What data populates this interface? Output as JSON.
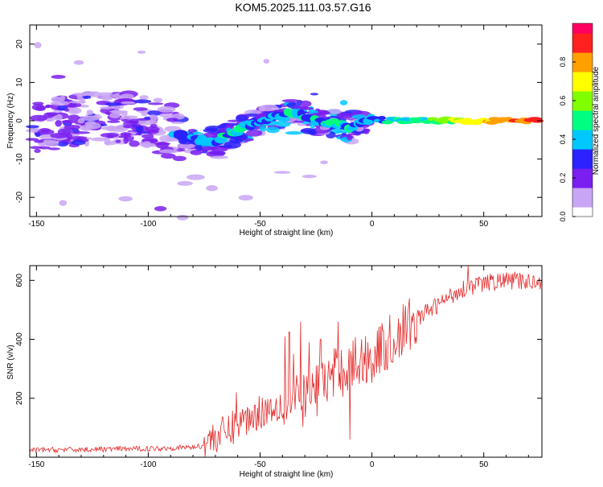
{
  "title": "KOM5.2025.111.03.57.G16",
  "chart_data": [
    {
      "type": "heatmap",
      "xlabel": "Height of straight line (km)",
      "ylabel": "Frequency (Hz)",
      "xlim": [
        -153,
        76
      ],
      "ylim": [
        -25,
        25
      ],
      "x_ticks": [
        -150,
        -100,
        -50,
        0,
        50
      ],
      "y_ticks": [
        -20,
        -10,
        0,
        10,
        20
      ],
      "colorbar": {
        "label": "Normalized spectral amplitude",
        "range": [
          0,
          1
        ],
        "ticks": [
          0.0,
          0.2,
          0.4,
          0.6,
          0.8
        ],
        "colors": [
          "#ffffff",
          "#c9a6f5",
          "#7a1ff0",
          "#2a22ff",
          "#00c8ff",
          "#00ff80",
          "#80ff00",
          "#ffff00",
          "#ffa000",
          "#ff2020",
          "#ff0060"
        ]
      },
      "ridge": {
        "x": [
          -150,
          -120,
          -100,
          -85,
          -78,
          -70,
          -62,
          -55,
          -48,
          -40,
          -33,
          -26,
          -20,
          -13,
          -9,
          -3,
          0,
          10,
          25,
          50,
          75
        ],
        "y": [
          -2,
          1,
          0,
          -4,
          -5,
          -5.5,
          -3,
          -1,
          0,
          1.5,
          2,
          0,
          -0.5,
          -1,
          -2,
          0,
          0.5,
          0,
          0,
          0,
          0
        ]
      }
    },
    {
      "type": "line",
      "xlabel": "Height of straight line (km)",
      "ylabel": "SNR (v/v)",
      "xlim": [
        -153,
        76
      ],
      "ylim": [
        0,
        650
      ],
      "x_ticks": [
        -150,
        -100,
        -50,
        0,
        50
      ],
      "y_ticks": [
        200,
        400,
        600
      ],
      "line_color": "#e32b2b",
      "trend": {
        "x": [
          -153,
          -100,
          -80,
          -75,
          -65,
          -60,
          -50,
          -40,
          -30,
          -20,
          -10,
          0,
          10,
          20,
          30,
          40,
          50,
          60,
          70,
          76
        ],
        "y": [
          15,
          20,
          25,
          30,
          60,
          90,
          130,
          160,
          200,
          260,
          310,
          340,
          400,
          470,
          520,
          570,
          590,
          600,
          595,
          600
        ]
      },
      "spikes": [
        {
          "x": -60.5,
          "y": 220
        },
        {
          "x": -39,
          "y": 410
        },
        {
          "x": -37,
          "y": 425
        },
        {
          "x": -35,
          "y": 350
        },
        {
          "x": -32,
          "y": 460
        },
        {
          "x": -28,
          "y": 390
        },
        {
          "x": -23,
          "y": 400
        },
        {
          "x": -15,
          "y": 460
        },
        {
          "x": -10,
          "y": 60
        },
        {
          "x": 43,
          "y": 650
        }
      ]
    }
  ]
}
